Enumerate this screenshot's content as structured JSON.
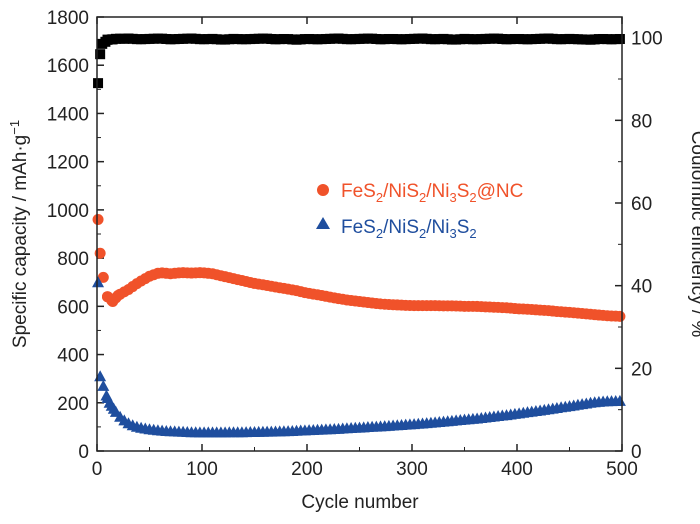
{
  "chart_data": {
    "type": "scatter",
    "xlabel": "Cycle number",
    "ylabel_left": "Specific capacity / mAh·g",
    "ylabel_left_superscript": "−1",
    "ylabel_right": "Coulombic efficiency / %",
    "xlim": [
      0,
      500
    ],
    "ylim_left": [
      0,
      1800
    ],
    "ylim_right": [
      0,
      105
    ],
    "x_ticks": [
      "0",
      "100",
      "200",
      "300",
      "400",
      "500"
    ],
    "y_left_ticks": [
      "0",
      "200",
      "400",
      "600",
      "800",
      "1000",
      "1200",
      "1400",
      "1600",
      "1800"
    ],
    "y_right_ticks": [
      "0",
      "20",
      "40",
      "60",
      "80",
      "100"
    ],
    "legend_position": "center-right",
    "series": [
      {
        "name": "FeS2/NiS2/Ni3S2@NC",
        "marker": "circle",
        "color": "#f0522a",
        "axis": "left",
        "points": [
          [
            1,
            960
          ],
          [
            3,
            820
          ],
          [
            6,
            720
          ],
          [
            10,
            640
          ],
          [
            15,
            620
          ],
          [
            20,
            645
          ],
          [
            30,
            670
          ],
          [
            40,
            700
          ],
          [
            50,
            725
          ],
          [
            60,
            740
          ],
          [
            70,
            735
          ],
          [
            80,
            740
          ],
          [
            90,
            738
          ],
          [
            100,
            740
          ],
          [
            110,
            735
          ],
          [
            120,
            725
          ],
          [
            130,
            715
          ],
          [
            140,
            705
          ],
          [
            150,
            695
          ],
          [
            160,
            688
          ],
          [
            170,
            680
          ],
          [
            180,
            673
          ],
          [
            190,
            665
          ],
          [
            200,
            655
          ],
          [
            210,
            648
          ],
          [
            220,
            640
          ],
          [
            230,
            632
          ],
          [
            240,
            625
          ],
          [
            250,
            620
          ],
          [
            260,
            615
          ],
          [
            270,
            610
          ],
          [
            280,
            607
          ],
          [
            290,
            605
          ],
          [
            300,
            603
          ],
          [
            310,
            603
          ],
          [
            320,
            603
          ],
          [
            330,
            602
          ],
          [
            340,
            602
          ],
          [
            350,
            600
          ],
          [
            360,
            600
          ],
          [
            370,
            598
          ],
          [
            380,
            596
          ],
          [
            390,
            594
          ],
          [
            400,
            590
          ],
          [
            410,
            588
          ],
          [
            420,
            585
          ],
          [
            430,
            582
          ],
          [
            440,
            578
          ],
          [
            450,
            575
          ],
          [
            460,
            571
          ],
          [
            470,
            567
          ],
          [
            480,
            563
          ],
          [
            490,
            560
          ],
          [
            500,
            558
          ]
        ]
      },
      {
        "name": "FeS2/NiS2/Ni3S2",
        "marker": "triangle",
        "color": "#1f4e9e",
        "axis": "left",
        "points": [
          [
            1,
            700
          ],
          [
            3,
            310
          ],
          [
            6,
            270
          ],
          [
            9,
            230
          ],
          [
            12,
            200
          ],
          [
            16,
            175
          ],
          [
            20,
            150
          ],
          [
            25,
            130
          ],
          [
            30,
            115
          ],
          [
            35,
            105
          ],
          [
            40,
            98
          ],
          [
            50,
            90
          ],
          [
            60,
            85
          ],
          [
            70,
            82
          ],
          [
            80,
            80
          ],
          [
            90,
            78
          ],
          [
            100,
            77
          ],
          [
            110,
            77
          ],
          [
            120,
            77
          ],
          [
            130,
            78
          ],
          [
            140,
            78
          ],
          [
            150,
            79
          ],
          [
            160,
            80
          ],
          [
            170,
            81
          ],
          [
            180,
            82
          ],
          [
            190,
            84
          ],
          [
            200,
            86
          ],
          [
            210,
            88
          ],
          [
            220,
            90
          ],
          [
            230,
            92
          ],
          [
            240,
            95
          ],
          [
            250,
            97
          ],
          [
            260,
            100
          ],
          [
            270,
            102
          ],
          [
            280,
            105
          ],
          [
            290,
            108
          ],
          [
            300,
            111
          ],
          [
            310,
            114
          ],
          [
            320,
            118
          ],
          [
            330,
            122
          ],
          [
            340,
            126
          ],
          [
            350,
            130
          ],
          [
            360,
            134
          ],
          [
            370,
            139
          ],
          [
            380,
            144
          ],
          [
            390,
            149
          ],
          [
            400,
            155
          ],
          [
            410,
            161
          ],
          [
            420,
            167
          ],
          [
            430,
            173
          ],
          [
            440,
            180
          ],
          [
            450,
            186
          ],
          [
            460,
            193
          ],
          [
            470,
            200
          ],
          [
            480,
            205
          ],
          [
            490,
            207
          ],
          [
            500,
            208
          ]
        ]
      },
      {
        "name": "Coulombic efficiency",
        "marker": "square",
        "color": "#000000",
        "axis": "right",
        "points": [
          [
            1,
            89
          ],
          [
            3,
            96
          ],
          [
            5,
            98.5
          ],
          [
            8,
            99
          ],
          [
            10,
            99.5
          ],
          [
            15,
            99.6
          ],
          [
            20,
            99.8
          ],
          [
            25,
            99.7
          ],
          [
            30,
            99.8
          ],
          [
            40,
            99.6
          ],
          [
            50,
            99.7
          ],
          [
            60,
            99.8
          ],
          [
            70,
            99.6
          ],
          [
            80,
            99.7
          ],
          [
            90,
            99.8
          ],
          [
            100,
            99.6
          ],
          [
            110,
            99.7
          ],
          [
            120,
            99.5
          ],
          [
            130,
            99.7
          ],
          [
            140,
            99.6
          ],
          [
            150,
            99.7
          ],
          [
            160,
            99.8
          ],
          [
            170,
            99.6
          ],
          [
            180,
            99.7
          ],
          [
            190,
            99.5
          ],
          [
            200,
            99.7
          ],
          [
            210,
            99.6
          ],
          [
            220,
            99.7
          ],
          [
            230,
            99.8
          ],
          [
            240,
            99.6
          ],
          [
            250,
            99.7
          ],
          [
            260,
            99.8
          ],
          [
            270,
            99.6
          ],
          [
            280,
            99.7
          ],
          [
            290,
            99.6
          ],
          [
            300,
            99.7
          ],
          [
            310,
            99.8
          ],
          [
            320,
            99.6
          ],
          [
            330,
            99.7
          ],
          [
            340,
            99.5
          ],
          [
            350,
            99.7
          ],
          [
            360,
            99.6
          ],
          [
            370,
            99.7
          ],
          [
            380,
            99.8
          ],
          [
            390,
            99.6
          ],
          [
            400,
            99.7
          ],
          [
            410,
            99.6
          ],
          [
            420,
            99.7
          ],
          [
            430,
            99.8
          ],
          [
            440,
            99.6
          ],
          [
            450,
            99.7
          ],
          [
            460,
            99.6
          ],
          [
            470,
            99.5
          ],
          [
            480,
            99.7
          ],
          [
            490,
            99.6
          ],
          [
            500,
            99.7
          ]
        ]
      }
    ],
    "legend": [
      {
        "base": "FeS",
        "s1": "2",
        "m1": "/NiS",
        "s2": "2",
        "m2": "/Ni",
        "s3": "3",
        "m3": "S",
        "s4": "2",
        "tail": "@NC"
      },
      {
        "base": "FeS",
        "s1": "2",
        "m1": "/NiS",
        "s2": "2",
        "m2": "/Ni",
        "s3": "3",
        "m3": "S",
        "s4": "2",
        "tail": ""
      }
    ]
  }
}
